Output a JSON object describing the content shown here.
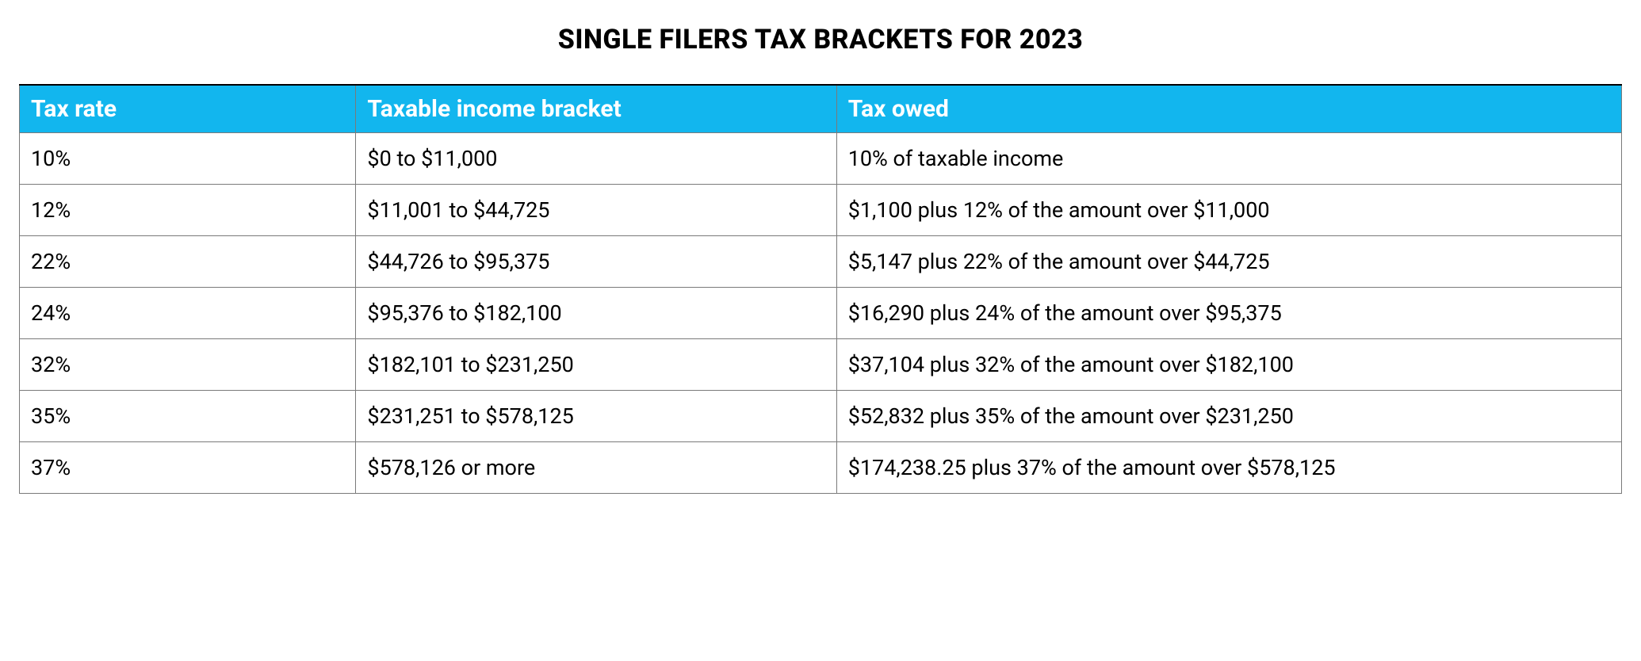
{
  "title": "SINGLE FILERS TAX BRACKETS FOR 2023",
  "table": {
    "type": "table",
    "header_bg": "#12b6ee",
    "header_text_color": "#ffffff",
    "border_color": "#7a7a7a",
    "top_border_color": "#000000",
    "background_color": "#ffffff",
    "title_fontsize": 34,
    "header_fontsize": 30,
    "cell_fontsize": 27,
    "columns": [
      {
        "key": "rate",
        "label": "Tax rate",
        "width_pct": 21
      },
      {
        "key": "bracket",
        "label": "Taxable income bracket",
        "width_pct": 30
      },
      {
        "key": "owed",
        "label": "Tax owed",
        "width_pct": 49
      }
    ],
    "rows": [
      {
        "rate": "10%",
        "bracket": "$0 to $11,000",
        "owed": "10% of taxable income"
      },
      {
        "rate": "12%",
        "bracket": "$11,001 to $44,725",
        "owed": "$1,100 plus 12% of the amount over $11,000"
      },
      {
        "rate": "22%",
        "bracket": "$44,726 to $95,375",
        "owed": "$5,147 plus 22% of the amount over $44,725"
      },
      {
        "rate": "24%",
        "bracket": "$95,376 to $182,100",
        "owed": "$16,290 plus 24% of the amount over $95,375"
      },
      {
        "rate": "32%",
        "bracket": "$182,101 to $231,250",
        "owed": "$37,104 plus 32% of the amount over $182,100"
      },
      {
        "rate": "35%",
        "bracket": "$231,251 to $578,125",
        "owed": "$52,832 plus 35% of the amount over $231,250"
      },
      {
        "rate": "37%",
        "bracket": "$578,126 or more",
        "owed": "$174,238.25 plus 37% of the amount over $578,125"
      }
    ]
  }
}
